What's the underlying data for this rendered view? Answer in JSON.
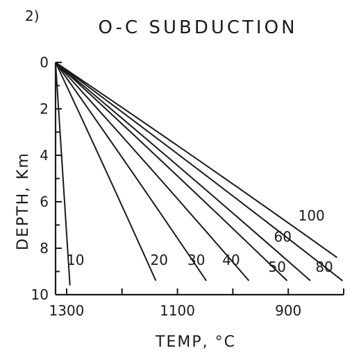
{
  "panel_label": "2)",
  "chart_data": {
    "type": "line",
    "title": "O-C  SUBDUCTION",
    "xlabel": "TEMP, °C",
    "ylabel": "DEPTH, Km",
    "xlim": [
      1320,
      800
    ],
    "ylim": [
      0,
      10
    ],
    "x_reversed": true,
    "y_reversed": true,
    "x_ticks": [
      1300,
      1200,
      1100,
      1000,
      900,
      800
    ],
    "x_tick_labels": [
      "1300",
      "",
      "1100",
      "",
      "900",
      ""
    ],
    "y_ticks": [
      0,
      1,
      2,
      3,
      4,
      5,
      6,
      7,
      8,
      9,
      10
    ],
    "y_tick_labels": [
      "0",
      "",
      "2",
      "",
      "4",
      "",
      "6",
      "",
      "8",
      "",
      "10"
    ],
    "grid": false,
    "origin": {
      "x": 1320,
      "y": 0
    },
    "series": [
      {
        "name": "10",
        "end": {
          "x": 1294,
          "y": 9.6
        },
        "label_pos": {
          "x": 1284,
          "y": 8.5
        }
      },
      {
        "name": "20",
        "end": {
          "x": 1139,
          "y": 9.4
        },
        "label_pos": {
          "x": 1133,
          "y": 8.5
        }
      },
      {
        "name": "30",
        "end": {
          "x": 1048,
          "y": 9.4
        },
        "label_pos": {
          "x": 1066,
          "y": 8.5
        }
      },
      {
        "name": "40",
        "end": {
          "x": 971,
          "y": 9.4
        },
        "label_pos": {
          "x": 1003,
          "y": 8.5
        }
      },
      {
        "name": "50",
        "end": {
          "x": 902,
          "y": 9.4
        },
        "label_pos": {
          "x": 920,
          "y": 8.8
        }
      },
      {
        "name": "60",
        "end": {
          "x": 860,
          "y": 9.4
        },
        "label_pos": {
          "x": 910,
          "y": 7.5
        }
      },
      {
        "name": "80",
        "end": {
          "x": 802,
          "y": 9.4
        },
        "label_pos": {
          "x": 835,
          "y": 8.8
        }
      },
      {
        "name": "100",
        "end": {
          "x": 812,
          "y": 8.4
        },
        "label_pos": {
          "x": 858,
          "y": 6.6
        }
      }
    ]
  }
}
